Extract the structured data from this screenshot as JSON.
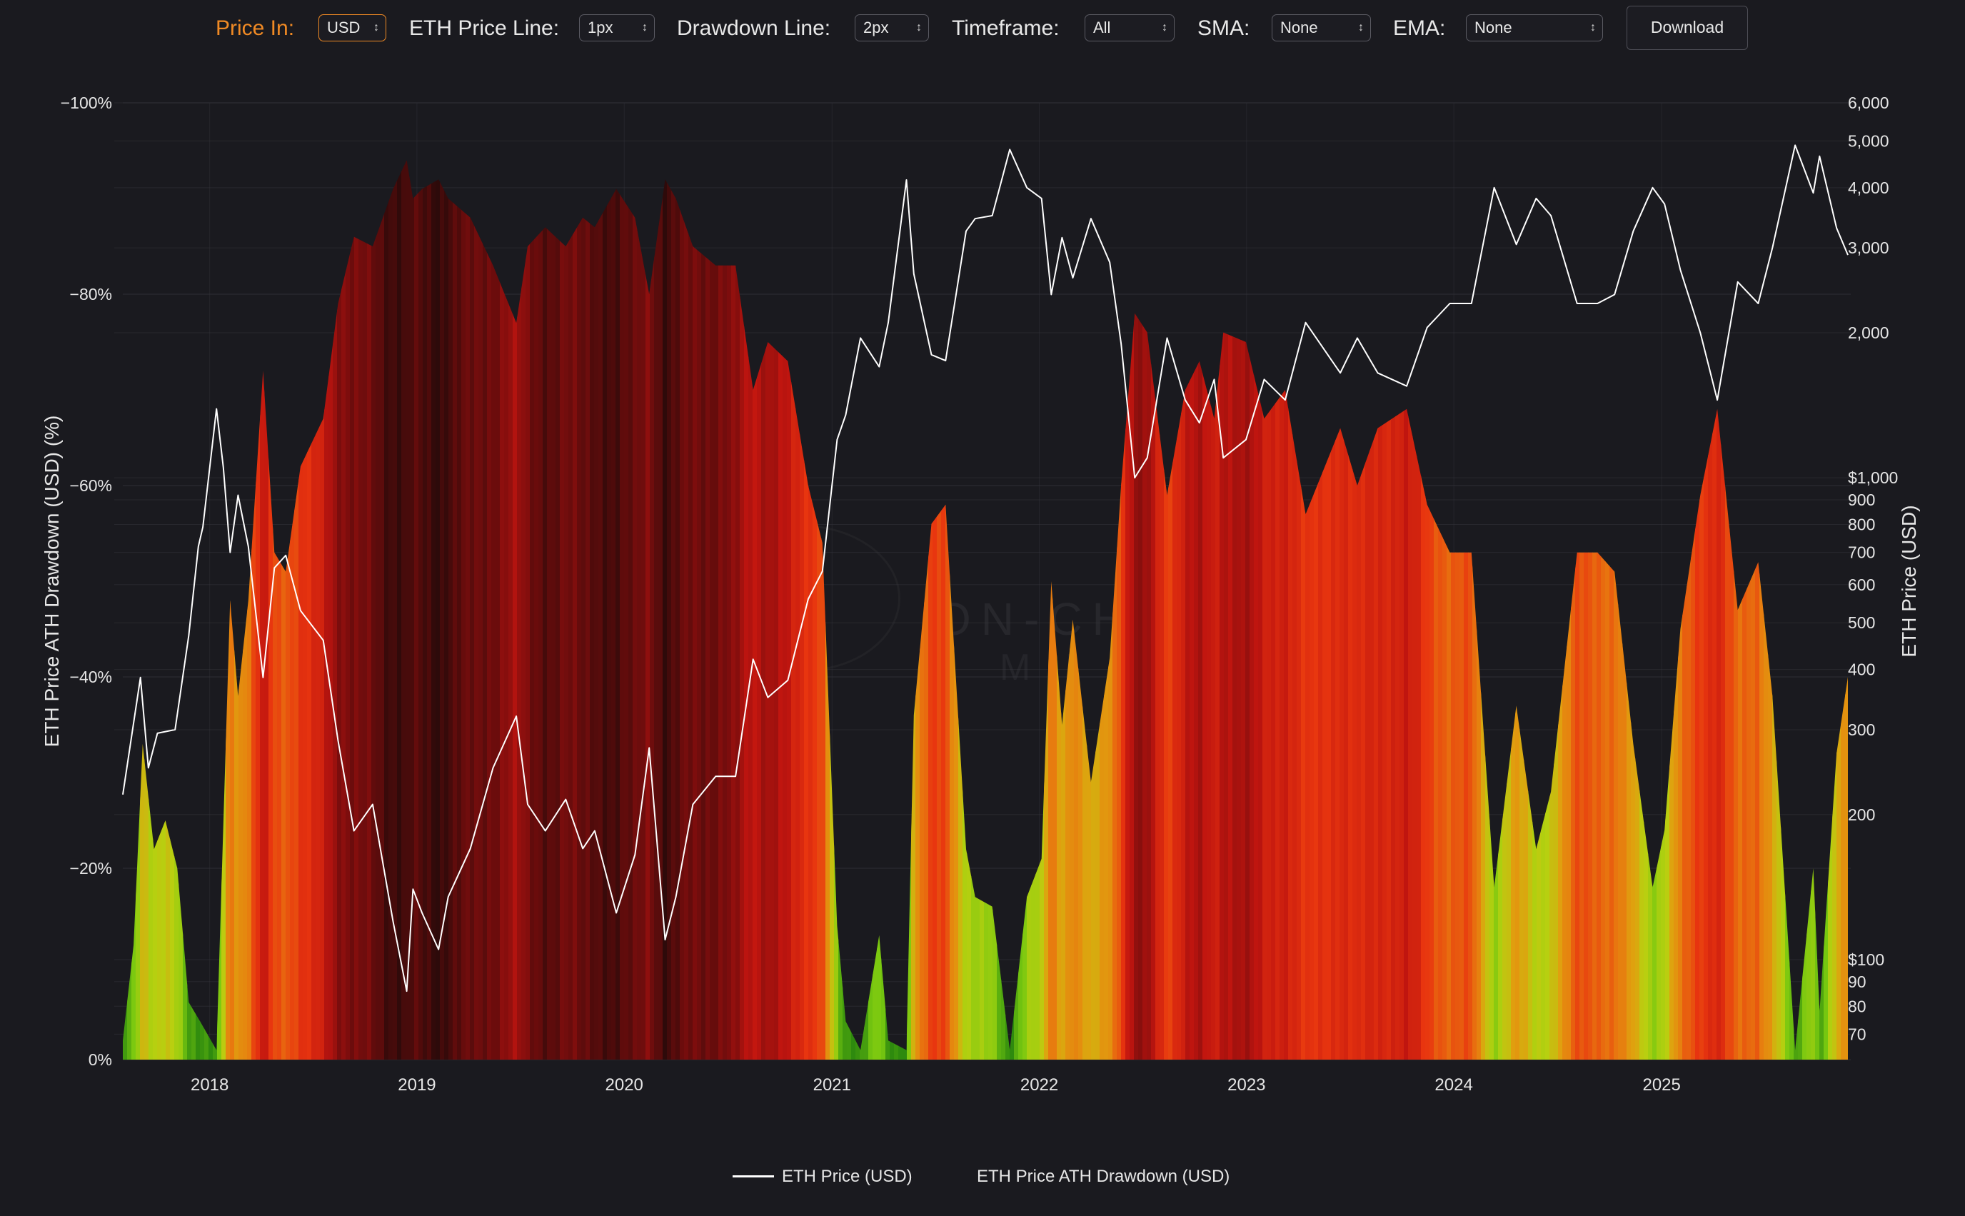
{
  "controls": {
    "price_in": {
      "label": "Price In:",
      "value": "USD"
    },
    "eth_price_line": {
      "label": "ETH Price Line:",
      "value": "1px"
    },
    "drawdown_line": {
      "label": "Drawdown Line:",
      "value": "2px"
    },
    "timeframe": {
      "label": "Timeframe:",
      "value": "All"
    },
    "sma": {
      "label": "SMA:",
      "value": "None"
    },
    "ema": {
      "label": "EMA:",
      "value": "None"
    },
    "download_label": "Download",
    "chevron_icon": "chevron-up-down-icon"
  },
  "watermark": {
    "text": "ON-CHAIN",
    "subtext": "MIND",
    "logo_icon": "brain-logo-icon"
  },
  "colors": {
    "accent": "#f08a24",
    "background": "#1a1a1f",
    "grid": "#3a3a42",
    "price_line": "#ffffff",
    "drawdown_scale": [
      "#2d0a0a",
      "#7a0d0d",
      "#c0150f",
      "#e8350f",
      "#e8780f",
      "#e0a00f",
      "#b8d010",
      "#78c810",
      "#2e8a0e"
    ]
  },
  "chart_data": {
    "type": "area",
    "x_range": [
      "2017-08-01",
      "2025-11-30"
    ],
    "x_ticks": [
      "2018",
      "2019",
      "2020",
      "2021",
      "2022",
      "2023",
      "2024",
      "2025"
    ],
    "y_left": {
      "label": "ETH Price ATH Drawdown (USD) (%)",
      "range": [
        -100,
        0
      ],
      "ticks": [
        "0%",
        "−20%",
        "−40%",
        "−60%",
        "−80%",
        "−100%"
      ],
      "tick_values": [
        0,
        -20,
        -40,
        -60,
        -80,
        -100
      ]
    },
    "y_right": {
      "label": "ETH Price (USD)",
      "scale": "log",
      "range": [
        62,
        6000
      ],
      "ticks": [
        "6,000",
        "5,000",
        "4,000",
        "3,000",
        "2,000",
        "$1,000",
        "900",
        "800",
        "700",
        "600",
        "500",
        "400",
        "300",
        "200",
        "$100",
        "90",
        "80",
        "70"
      ],
      "tick_values": [
        6000,
        5000,
        4000,
        3000,
        2000,
        1000,
        900,
        800,
        700,
        600,
        500,
        400,
        300,
        200,
        100,
        90,
        80,
        70
      ]
    },
    "grid": true,
    "legend_position": "bottom-center",
    "series": [
      {
        "name": "ETH Price (USD)",
        "type": "line",
        "points": [
          [
            "2017-08-01",
            220
          ],
          [
            "2017-09-01",
            385
          ],
          [
            "2017-09-15",
            250
          ],
          [
            "2017-10-01",
            295
          ],
          [
            "2017-11-01",
            300
          ],
          [
            "2017-11-25",
            470
          ],
          [
            "2017-12-12",
            720
          ],
          [
            "2017-12-20",
            790
          ],
          [
            "2018-01-13",
            1390
          ],
          [
            "2018-01-25",
            1050
          ],
          [
            "2018-02-06",
            700
          ],
          [
            "2018-02-20",
            920
          ],
          [
            "2018-03-10",
            720
          ],
          [
            "2018-04-05",
            385
          ],
          [
            "2018-04-25",
            650
          ],
          [
            "2018-05-15",
            690
          ],
          [
            "2018-06-10",
            530
          ],
          [
            "2018-07-20",
            460
          ],
          [
            "2018-08-15",
            285
          ],
          [
            "2018-09-12",
            185
          ],
          [
            "2018-10-15",
            210
          ],
          [
            "2018-11-20",
            120
          ],
          [
            "2018-12-14",
            86
          ],
          [
            "2018-12-25",
            140
          ],
          [
            "2019-01-10",
            125
          ],
          [
            "2019-02-08",
            105
          ],
          [
            "2019-02-25",
            135
          ],
          [
            "2019-04-05",
            170
          ],
          [
            "2019-05-15",
            250
          ],
          [
            "2019-06-25",
            320
          ],
          [
            "2019-07-15",
            210
          ],
          [
            "2019-08-15",
            185
          ],
          [
            "2019-09-20",
            215
          ],
          [
            "2019-10-20",
            170
          ],
          [
            "2019-11-10",
            185
          ],
          [
            "2019-12-18",
            125
          ],
          [
            "2020-01-20",
            165
          ],
          [
            "2020-02-14",
            275
          ],
          [
            "2020-03-13",
            110
          ],
          [
            "2020-04-01",
            135
          ],
          [
            "2020-05-01",
            210
          ],
          [
            "2020-06-10",
            240
          ],
          [
            "2020-07-15",
            240
          ],
          [
            "2020-08-15",
            420
          ],
          [
            "2020-09-10",
            350
          ],
          [
            "2020-10-15",
            380
          ],
          [
            "2020-11-20",
            560
          ],
          [
            "2020-12-15",
            640
          ],
          [
            "2021-01-10",
            1200
          ],
          [
            "2021-01-25",
            1350
          ],
          [
            "2021-02-20",
            1950
          ],
          [
            "2021-03-25",
            1700
          ],
          [
            "2021-04-10",
            2100
          ],
          [
            "2021-05-12",
            4150
          ],
          [
            "2021-05-25",
            2650
          ],
          [
            "2021-06-25",
            1800
          ],
          [
            "2021-07-20",
            1750
          ],
          [
            "2021-08-25",
            3250
          ],
          [
            "2021-09-10",
            3450
          ],
          [
            "2021-10-10",
            3500
          ],
          [
            "2021-11-10",
            4800
          ],
          [
            "2021-12-10",
            4000
          ],
          [
            "2022-01-05",
            3800
          ],
          [
            "2022-01-22",
            2400
          ],
          [
            "2022-02-10",
            3150
          ],
          [
            "2022-03-01",
            2600
          ],
          [
            "2022-04-02",
            3450
          ],
          [
            "2022-05-05",
            2800
          ],
          [
            "2022-05-25",
            1900
          ],
          [
            "2022-06-18",
            1000
          ],
          [
            "2022-07-10",
            1100
          ],
          [
            "2022-08-14",
            1950
          ],
          [
            "2022-09-15",
            1450
          ],
          [
            "2022-10-10",
            1300
          ],
          [
            "2022-11-05",
            1600
          ],
          [
            "2022-11-21",
            1100
          ],
          [
            "2022-12-31",
            1200
          ],
          [
            "2023-02-01",
            1600
          ],
          [
            "2023-03-10",
            1450
          ],
          [
            "2023-04-15",
            2100
          ],
          [
            "2023-06-15",
            1650
          ],
          [
            "2023-07-15",
            1950
          ],
          [
            "2023-08-20",
            1650
          ],
          [
            "2023-10-10",
            1550
          ],
          [
            "2023-11-15",
            2050
          ],
          [
            "2023-12-25",
            2300
          ],
          [
            "2024-02-01",
            2300
          ],
          [
            "2024-03-12",
            4000
          ],
          [
            "2024-04-20",
            3050
          ],
          [
            "2024-05-25",
            3800
          ],
          [
            "2024-06-20",
            3500
          ],
          [
            "2024-08-05",
            2300
          ],
          [
            "2024-09-10",
            2300
          ],
          [
            "2024-10-10",
            2400
          ],
          [
            "2024-11-12",
            3250
          ],
          [
            "2024-12-16",
            4000
          ],
          [
            "2025-01-06",
            3700
          ],
          [
            "2025-02-03",
            2700
          ],
          [
            "2025-03-10",
            2000
          ],
          [
            "2025-04-09",
            1450
          ],
          [
            "2025-05-15",
            2550
          ],
          [
            "2025-06-20",
            2300
          ],
          [
            "2025-07-15",
            3000
          ],
          [
            "2025-08-24",
            4900
          ],
          [
            "2025-09-25",
            3900
          ],
          [
            "2025-10-06",
            4650
          ],
          [
            "2025-11-05",
            3300
          ],
          [
            "2025-11-25",
            2900
          ]
        ]
      },
      {
        "name": "ETH Price ATH Drawdown (USD)",
        "type": "area",
        "points": [
          [
            "2017-08-01",
            -2
          ],
          [
            "2017-08-20",
            -12
          ],
          [
            "2017-09-05",
            -33
          ],
          [
            "2017-09-25",
            -22
          ],
          [
            "2017-10-15",
            -25
          ],
          [
            "2017-11-05",
            -20
          ],
          [
            "2017-11-25",
            -6
          ],
          [
            "2017-12-15",
            -4
          ],
          [
            "2018-01-13",
            -1
          ],
          [
            "2018-02-06",
            -48
          ],
          [
            "2018-02-20",
            -38
          ],
          [
            "2018-03-10",
            -48
          ],
          [
            "2018-04-05",
            -72
          ],
          [
            "2018-04-25",
            -53
          ],
          [
            "2018-05-15",
            -51
          ],
          [
            "2018-06-10",
            -62
          ],
          [
            "2018-07-20",
            -67
          ],
          [
            "2018-08-15",
            -79
          ],
          [
            "2018-09-12",
            -86
          ],
          [
            "2018-10-15",
            -85
          ],
          [
            "2018-11-20",
            -91
          ],
          [
            "2018-12-14",
            -94
          ],
          [
            "2018-12-25",
            -90
          ],
          [
            "2019-01-10",
            -91
          ],
          [
            "2019-02-08",
            -92
          ],
          [
            "2019-02-25",
            -90
          ],
          [
            "2019-04-05",
            -88
          ],
          [
            "2019-05-15",
            -83
          ],
          [
            "2019-06-25",
            -77
          ],
          [
            "2019-07-15",
            -85
          ],
          [
            "2019-08-15",
            -87
          ],
          [
            "2019-09-20",
            -85
          ],
          [
            "2019-10-20",
            -88
          ],
          [
            "2019-11-10",
            -87
          ],
          [
            "2019-12-18",
            -91
          ],
          [
            "2020-01-20",
            -88
          ],
          [
            "2020-02-14",
            -80
          ],
          [
            "2020-03-13",
            -92
          ],
          [
            "2020-04-01",
            -90
          ],
          [
            "2020-05-01",
            -85
          ],
          [
            "2020-06-10",
            -83
          ],
          [
            "2020-07-15",
            -83
          ],
          [
            "2020-08-15",
            -70
          ],
          [
            "2020-09-10",
            -75
          ],
          [
            "2020-10-15",
            -73
          ],
          [
            "2020-11-20",
            -60
          ],
          [
            "2020-12-15",
            -54
          ],
          [
            "2021-01-10",
            -14
          ],
          [
            "2021-01-25",
            -4
          ],
          [
            "2021-02-20",
            -1
          ],
          [
            "2021-03-25",
            -13
          ],
          [
            "2021-04-10",
            -2
          ],
          [
            "2021-05-12",
            -1
          ],
          [
            "2021-05-25",
            -36
          ],
          [
            "2021-06-25",
            -56
          ],
          [
            "2021-07-20",
            -58
          ],
          [
            "2021-08-25",
            -22
          ],
          [
            "2021-09-10",
            -17
          ],
          [
            "2021-10-10",
            -16
          ],
          [
            "2021-11-10",
            -1
          ],
          [
            "2021-12-10",
            -17
          ],
          [
            "2022-01-05",
            -21
          ],
          [
            "2022-01-22",
            -50
          ],
          [
            "2022-02-10",
            -35
          ],
          [
            "2022-03-01",
            -46
          ],
          [
            "2022-04-02",
            -29
          ],
          [
            "2022-05-05",
            -42
          ],
          [
            "2022-05-25",
            -60
          ],
          [
            "2022-06-18",
            -78
          ],
          [
            "2022-07-10",
            -76
          ],
          [
            "2022-08-14",
            -59
          ],
          [
            "2022-09-15",
            -70
          ],
          [
            "2022-10-10",
            -73
          ],
          [
            "2022-11-05",
            -67
          ],
          [
            "2022-11-21",
            -76
          ],
          [
            "2022-12-31",
            -75
          ],
          [
            "2023-02-01",
            -67
          ],
          [
            "2023-03-10",
            -70
          ],
          [
            "2023-04-15",
            -57
          ],
          [
            "2023-06-15",
            -66
          ],
          [
            "2023-07-15",
            -60
          ],
          [
            "2023-08-20",
            -66
          ],
          [
            "2023-10-10",
            -68
          ],
          [
            "2023-11-15",
            -58
          ],
          [
            "2023-12-25",
            -53
          ],
          [
            "2024-02-01",
            -53
          ],
          [
            "2024-03-12",
            -18
          ],
          [
            "2024-04-20",
            -37
          ],
          [
            "2024-05-25",
            -22
          ],
          [
            "2024-06-20",
            -28
          ],
          [
            "2024-08-05",
            -53
          ],
          [
            "2024-09-10",
            -53
          ],
          [
            "2024-10-10",
            -51
          ],
          [
            "2024-11-12",
            -33
          ],
          [
            "2024-12-16",
            -18
          ],
          [
            "2025-01-06",
            -24
          ],
          [
            "2025-02-03",
            -45
          ],
          [
            "2025-03-10",
            -59
          ],
          [
            "2025-04-09",
            -68
          ],
          [
            "2025-05-15",
            -47
          ],
          [
            "2025-06-20",
            -52
          ],
          [
            "2025-07-15",
            -38
          ],
          [
            "2025-08-24",
            -1
          ],
          [
            "2025-09-25",
            -20
          ],
          [
            "2025-10-06",
            -5
          ],
          [
            "2025-11-05",
            -32
          ],
          [
            "2025-11-25",
            -40
          ]
        ]
      }
    ]
  }
}
